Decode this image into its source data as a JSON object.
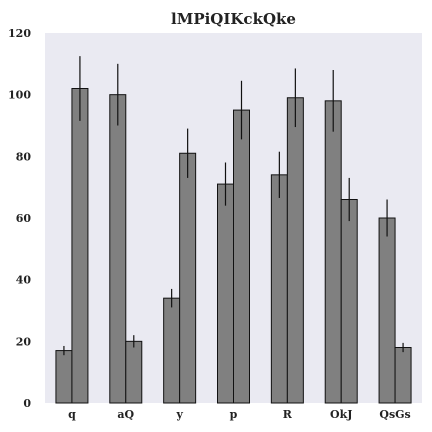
{
  "chart_data": {
    "type": "bar",
    "title": "lMPiQIKckQke",
    "categories": [
      "q",
      "aQ",
      "y",
      "p",
      "R",
      "OkJ",
      "QsGs"
    ],
    "series": [
      {
        "values": [
          17,
          100,
          34,
          71,
          74,
          98,
          60
        ],
        "errors": [
          1.5,
          10,
          3,
          7,
          7.5,
          10,
          6
        ]
      },
      {
        "values": [
          102,
          20,
          81,
          95,
          99,
          66,
          18
        ],
        "errors": [
          10.5,
          2,
          8,
          9.5,
          9.5,
          7,
          1.5
        ]
      }
    ],
    "ylim": [
      0,
      120
    ],
    "yticks": [
      0,
      20,
      40,
      60,
      80,
      100,
      120
    ],
    "grid": false,
    "colors": {
      "bar_fill": "#808080",
      "bar_edge": "#111111",
      "error_bar": "#111111",
      "plot_background": "#eaeaf2"
    }
  }
}
